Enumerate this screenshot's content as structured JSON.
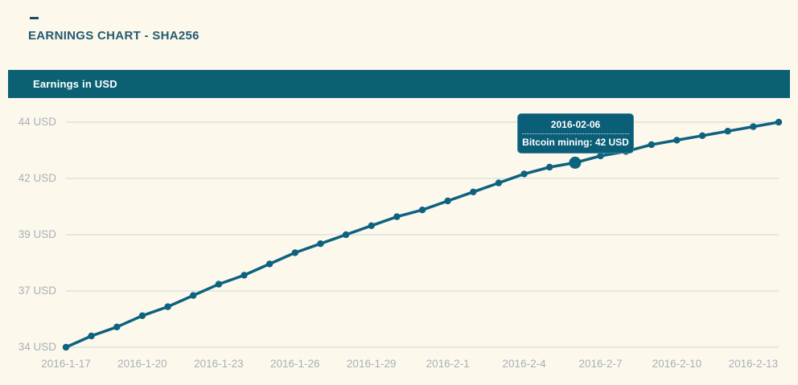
{
  "header": {
    "title": "EARNINGS CHART - SHA256"
  },
  "banner": {
    "label": "Earnings in USD"
  },
  "tooltip": {
    "date": "2016-02-06",
    "text": "Bitcoin mining: 42 USD"
  },
  "colors": {
    "background": "#fdf8ec",
    "banner": "#0b6173",
    "line": "#0d627f",
    "tooltip_bg": "#0b5e78",
    "gridline": "#c9d7d9",
    "axis_text": "#a7b1b7",
    "title_text": "#235a72"
  },
  "chart_data": {
    "type": "line",
    "title": "Earnings in USD",
    "series_name": "Bitcoin mining",
    "x": [
      "2016-1-17",
      "2016-1-18",
      "2016-1-19",
      "2016-1-20",
      "2016-1-21",
      "2016-1-22",
      "2016-1-23",
      "2016-1-24",
      "2016-1-25",
      "2016-1-26",
      "2016-1-27",
      "2016-1-28",
      "2016-1-29",
      "2016-1-30",
      "2016-1-31",
      "2016-2-1",
      "2016-2-2",
      "2016-2-3",
      "2016-2-4",
      "2016-2-5",
      "2016-2-6",
      "2016-2-7",
      "2016-2-8",
      "2016-2-9",
      "2016-2-10",
      "2016-2-11",
      "2016-2-12",
      "2016-2-13",
      "2016-2-14"
    ],
    "values": [
      34.0,
      34.5,
      34.9,
      35.4,
      35.8,
      36.3,
      36.8,
      37.2,
      37.7,
      38.2,
      38.6,
      39.0,
      39.4,
      39.8,
      40.1,
      40.5,
      40.9,
      41.3,
      41.7,
      42.0,
      42.2,
      42.5,
      42.7,
      43.0,
      43.2,
      43.4,
      43.6,
      43.8,
      44.0
    ],
    "unit": "USD",
    "ylim": [
      34,
      44
    ],
    "ytick_labels": [
      "44 USD",
      "42 USD",
      "39 USD",
      "37 USD",
      "34 USD"
    ],
    "ytick_values": [
      44,
      41.5,
      39,
      36.5,
      34
    ],
    "xtick_every": 3,
    "grid": "horizontal-only",
    "legend": "none",
    "highlight_index": 20,
    "highlight_value_label": "42 USD"
  }
}
